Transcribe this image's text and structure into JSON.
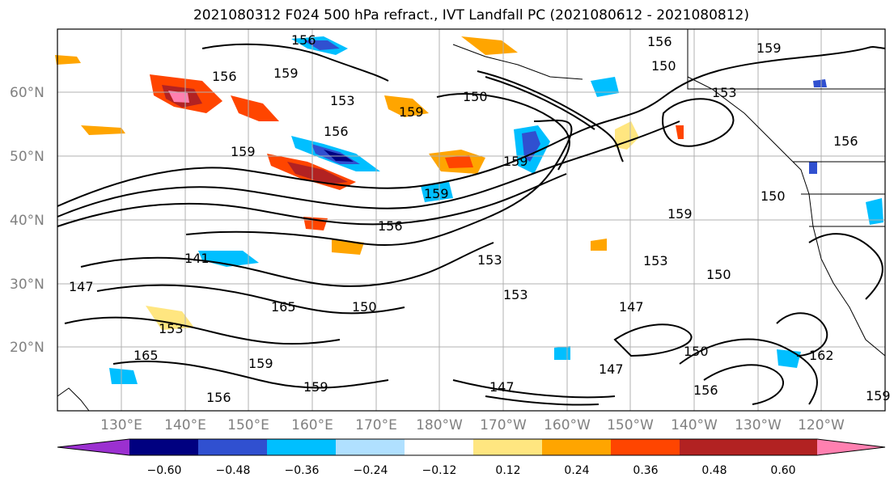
{
  "title": "2021080312 F024 500 hPa refract., IVT Landfall PC (2021080612 - 2021080812)",
  "map": {
    "lat_labels": [
      "60°N",
      "50°N",
      "40°N",
      "30°N",
      "20°N"
    ],
    "lon_labels": [
      "130°E",
      "140°E",
      "150°E",
      "160°E",
      "170°E",
      "180°W",
      "170°W",
      "160°W",
      "150°W",
      "140°W",
      "130°W",
      "120°W"
    ],
    "contour_labels": [
      "156",
      "159",
      "156",
      "156",
      "153",
      "159",
      "150",
      "156",
      "159",
      "159",
      "147",
      "150",
      "153",
      "156",
      "159",
      "162",
      "165",
      "147",
      "150",
      "153",
      "156",
      "159",
      "141",
      "153",
      "150",
      "147",
      "159",
      "159",
      "165",
      "156",
      "150",
      "147",
      "153",
      "156",
      "159",
      "150",
      "153",
      "159"
    ]
  },
  "colorbar": {
    "ticks": [
      "−0.60",
      "−0.48",
      "−0.36",
      "−0.24",
      "−0.12",
      "0.12",
      "0.24",
      "0.36",
      "0.48",
      "0.60"
    ],
    "colors": [
      "#9b30d0",
      "#000080",
      "#3050d0",
      "#00bfff",
      "#b0e0ff",
      "#ffffff",
      "#ffe680",
      "#ffa500",
      "#ff4500",
      "#b22222",
      "#ff80b0"
    ]
  }
}
